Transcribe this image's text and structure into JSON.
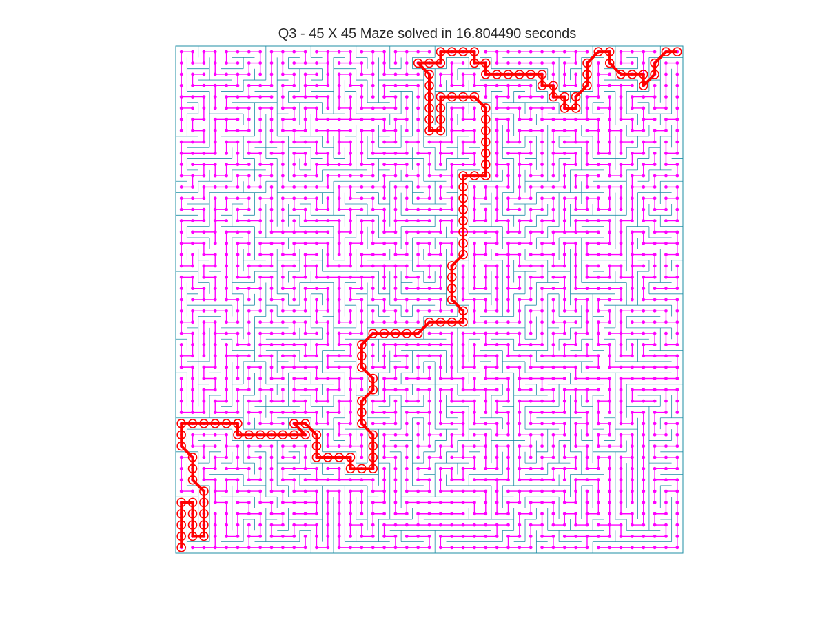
{
  "title": "Q3 - 45 X 45 Maze solved in 16.804490 seconds",
  "colors": {
    "background": "#ffffff",
    "maze_walls": "#1f8fa6",
    "tree_edges": "#ff00ff",
    "tree_nodes": "#ff00ff",
    "solution_path": "#ff0000",
    "title_text": "#262626"
  },
  "maze": {
    "rows": 45,
    "cols": 45,
    "start_cell": {
      "row": 45,
      "col": 1
    },
    "end_cell": {
      "row": 1,
      "col": 45
    },
    "solution_path_cells": [
      [
        45,
        1
      ],
      [
        44,
        1
      ],
      [
        43,
        1
      ],
      [
        42,
        1
      ],
      [
        41,
        1
      ],
      [
        41,
        2
      ],
      [
        42,
        2
      ],
      [
        43,
        2
      ],
      [
        44,
        2
      ],
      [
        44,
        3
      ],
      [
        43,
        3
      ],
      [
        42,
        3
      ],
      [
        41,
        3
      ],
      [
        40,
        3
      ],
      [
        39,
        2
      ],
      [
        38,
        2
      ],
      [
        37,
        2
      ],
      [
        36,
        1
      ],
      [
        35,
        1
      ],
      [
        34,
        1
      ],
      [
        34,
        2
      ],
      [
        34,
        3
      ],
      [
        34,
        4
      ],
      [
        34,
        5
      ],
      [
        34,
        6
      ],
      [
        35,
        6
      ],
      [
        35,
        7
      ],
      [
        35,
        8
      ],
      [
        35,
        9
      ],
      [
        35,
        10
      ],
      [
        35,
        11
      ],
      [
        35,
        12
      ],
      [
        34,
        11
      ],
      [
        34,
        12
      ],
      [
        35,
        13
      ],
      [
        36,
        13
      ],
      [
        37,
        13
      ],
      [
        37,
        14
      ],
      [
        37,
        15
      ],
      [
        37,
        16
      ],
      [
        38,
        16
      ],
      [
        38,
        17
      ],
      [
        38,
        18
      ],
      [
        37,
        18
      ],
      [
        36,
        18
      ],
      [
        35,
        18
      ],
      [
        34,
        17
      ],
      [
        33,
        17
      ],
      [
        32,
        17
      ],
      [
        31,
        18
      ],
      [
        30,
        18
      ],
      [
        29,
        17
      ],
      [
        28,
        17
      ],
      [
        27,
        17
      ],
      [
        26,
        18
      ],
      [
        26,
        19
      ],
      [
        26,
        20
      ],
      [
        26,
        21
      ],
      [
        26,
        22
      ],
      [
        25,
        23
      ],
      [
        25,
        24
      ],
      [
        25,
        25
      ],
      [
        25,
        26
      ],
      [
        24,
        26
      ],
      [
        23,
        25
      ],
      [
        22,
        25
      ],
      [
        21,
        25
      ],
      [
        20,
        25
      ],
      [
        19,
        26
      ],
      [
        18,
        26
      ],
      [
        17,
        26
      ],
      [
        16,
        26
      ],
      [
        15,
        26
      ],
      [
        14,
        26
      ],
      [
        13,
        26
      ],
      [
        12,
        26
      ],
      [
        12,
        27
      ],
      [
        12,
        28
      ],
      [
        11,
        28
      ],
      [
        10,
        28
      ],
      [
        9,
        28
      ],
      [
        8,
        28
      ],
      [
        7,
        28
      ],
      [
        6,
        28
      ],
      [
        5,
        27
      ],
      [
        5,
        26
      ],
      [
        5,
        25
      ],
      [
        5,
        24
      ],
      [
        6,
        24
      ],
      [
        7,
        24
      ],
      [
        8,
        24
      ],
      [
        8,
        23
      ],
      [
        7,
        23
      ],
      [
        6,
        23
      ],
      [
        5,
        23
      ],
      [
        4,
        23
      ],
      [
        3,
        23
      ],
      [
        2,
        22
      ],
      [
        2,
        23
      ],
      [
        2,
        24
      ],
      [
        1,
        24
      ],
      [
        1,
        25
      ],
      [
        1,
        26
      ],
      [
        1,
        27
      ],
      [
        2,
        27
      ],
      [
        2,
        28
      ],
      [
        3,
        28
      ],
      [
        3,
        29
      ],
      [
        3,
        30
      ],
      [
        3,
        31
      ],
      [
        3,
        32
      ],
      [
        3,
        33
      ],
      [
        4,
        33
      ],
      [
        4,
        34
      ],
      [
        5,
        34
      ],
      [
        5,
        35
      ],
      [
        6,
        35
      ],
      [
        6,
        36
      ],
      [
        5,
        36
      ],
      [
        4,
        37
      ],
      [
        3,
        37
      ],
      [
        2,
        37
      ],
      [
        1,
        38
      ],
      [
        1,
        39
      ],
      [
        2,
        39
      ],
      [
        3,
        40
      ],
      [
        3,
        41
      ],
      [
        3,
        42
      ],
      [
        4,
        42
      ],
      [
        3,
        43
      ],
      [
        2,
        43
      ],
      [
        1,
        44
      ],
      [
        1,
        45
      ]
    ]
  }
}
